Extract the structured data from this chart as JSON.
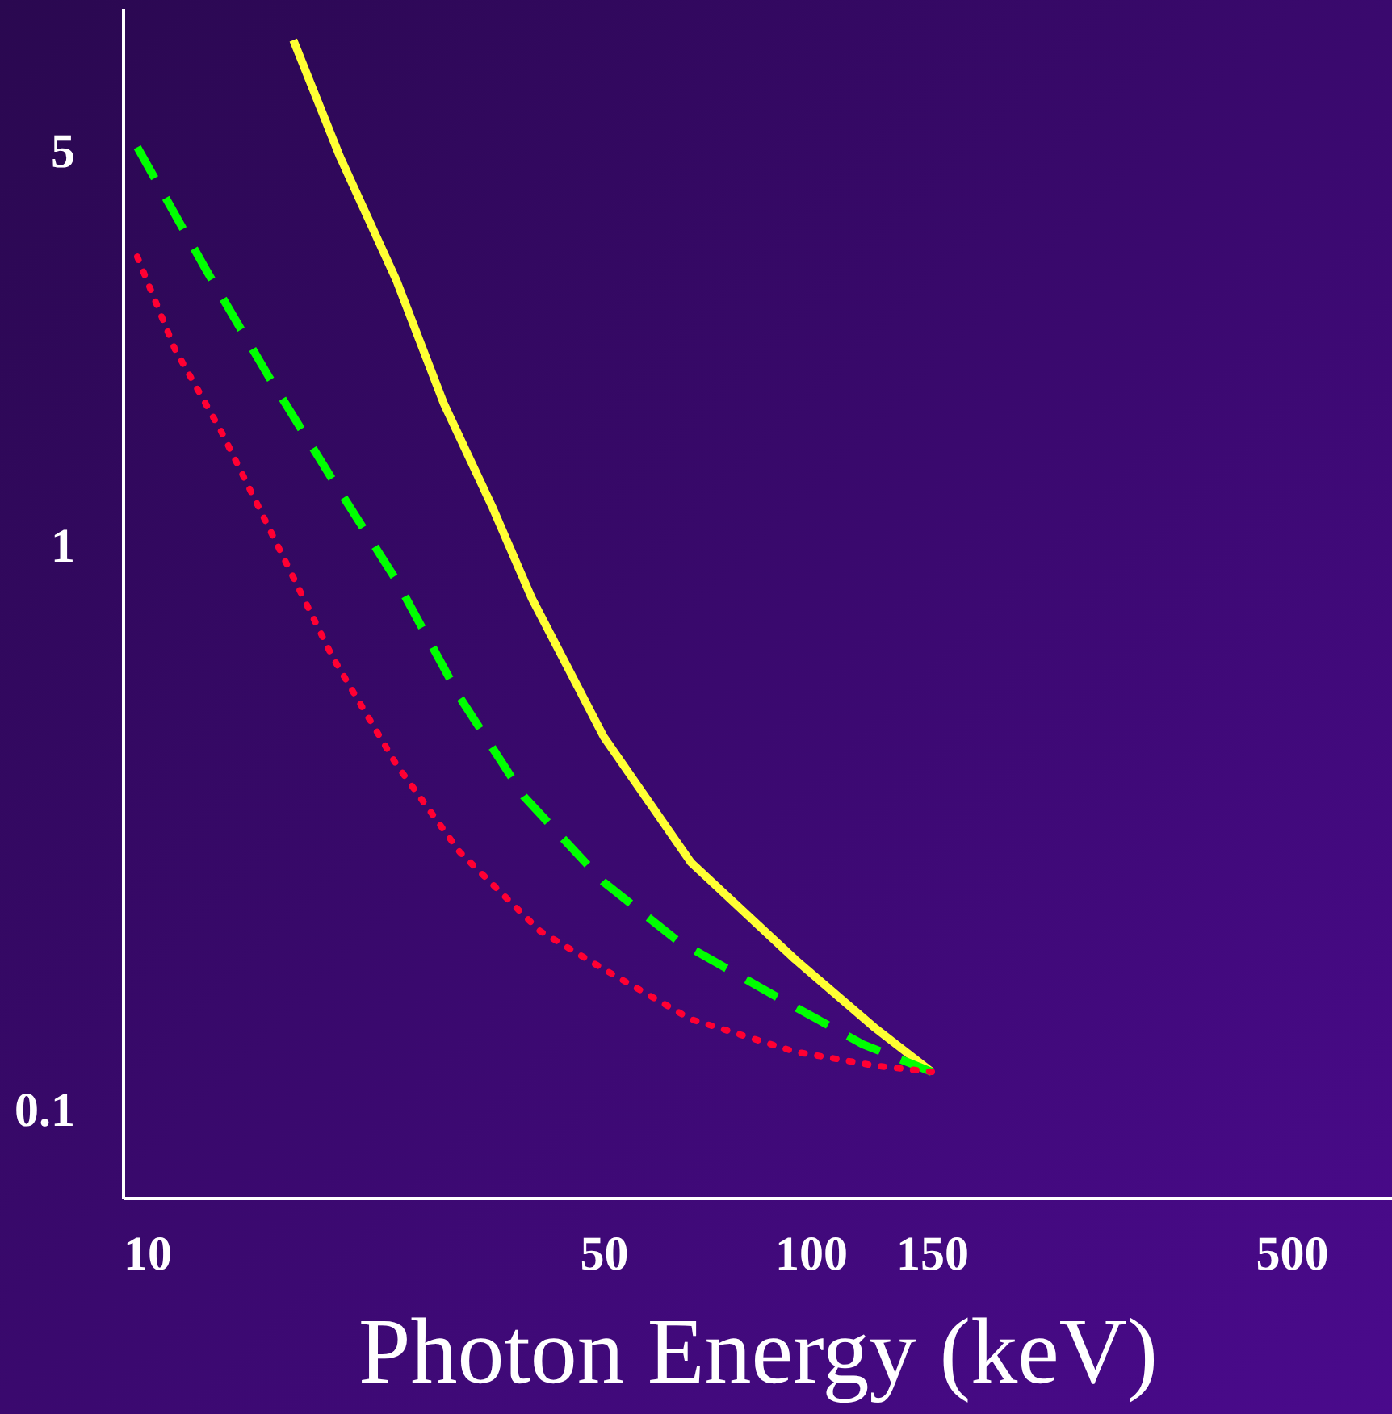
{
  "chart_data": {
    "type": "line",
    "xlabel": "Photon Energy (keV)",
    "log": "xy",
    "grid": false,
    "marker": "none",
    "xlim": [
      10,
      700
    ],
    "xticks": [
      10,
      50,
      100,
      150,
      500
    ],
    "ylim": [
      0.07,
      9
    ],
    "yticks": [
      0.1,
      1,
      5
    ],
    "series": [
      {
        "color": "#ffff33",
        "line_style": "solid",
        "x": [
          17.7,
          20.7,
          25,
          29.3,
          34.5,
          39.3,
          50,
          67,
          95,
          124,
          150
        ],
        "values": [
          7.9,
          4.9,
          2.96,
          1.79,
          1.17,
          0.81,
          0.46,
          0.275,
          0.185,
          0.14,
          0.117
        ]
      },
      {
        "color": "#00ff00",
        "line_style": "dashed",
        "x": [
          10.5,
          13.2,
          16.3,
          20.2,
          25,
          30.9,
          38.3,
          50,
          64,
          90,
          119,
          150
        ],
        "values": [
          5.1,
          3.1,
          2.0,
          1.31,
          0.87,
          0.54,
          0.36,
          0.254,
          0.2,
          0.158,
          0.131,
          0.117
        ]
      },
      {
        "color": "#ff0033",
        "line_style": "dotted",
        "x": [
          10.5,
          11.9,
          13.9,
          16.3,
          20.2,
          25,
          30.9,
          40.4,
          50,
          67,
          95,
          124,
          150
        ],
        "values": [
          3.26,
          2.24,
          1.6,
          1.08,
          0.635,
          0.41,
          0.287,
          0.208,
          0.178,
          0.145,
          0.127,
          0.12,
          0.117
        ]
      }
    ]
  }
}
